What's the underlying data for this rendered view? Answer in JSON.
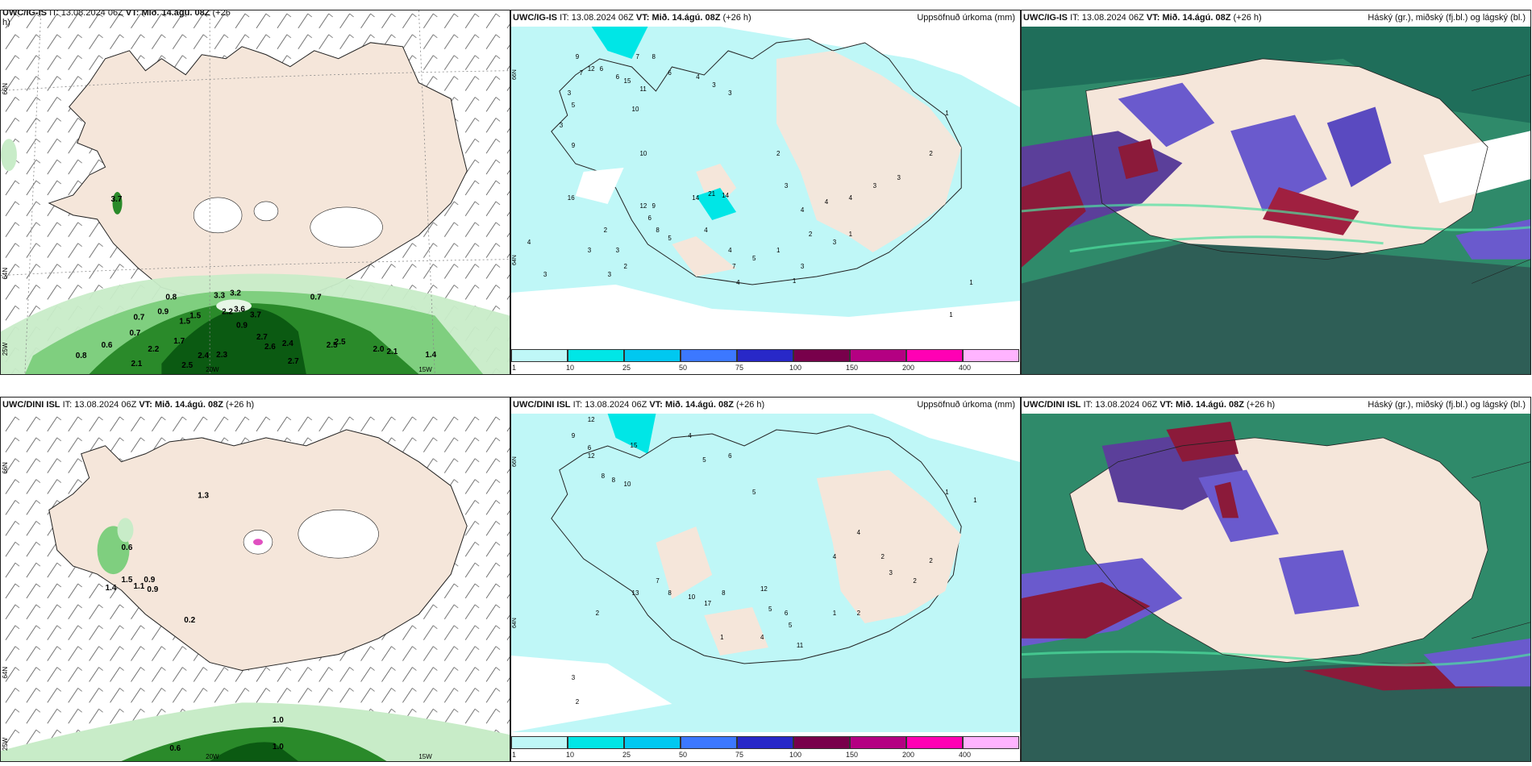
{
  "panels": {
    "p1": {
      "model": "UWC/IG-IS",
      "it": "13.08.2024 06Z",
      "vt": "Mið. 14.ágú. 08Z",
      "lead": "(+26",
      "lead2": "h)"
    },
    "p2": {
      "model": "UWC/IG-IS",
      "it": "13.08.2024 06Z",
      "vt": "Mið. 14.ágú. 08Z",
      "lead": "(+26 h)",
      "right": "Uppsöfnuð úrkoma (mm)"
    },
    "p3": {
      "model": "UWC/IG-IS",
      "it": "13.08.2024 06Z",
      "vt": "Mið. 14.ágú. 08Z",
      "lead": "(+26 h)",
      "right": "Háský (gr.), miðský (fj.bl.) og lágský (bl.)"
    },
    "p4": {
      "model": "UWC/DINI ISL",
      "it": "13.08.2024 06Z",
      "vt": "Mið. 14.ágú. 08Z",
      "lead": "(+26 h)"
    },
    "p5": {
      "model": "UWC/DINI ISL",
      "it": "13.08.2024 06Z",
      "vt": "Mið. 14.ágú. 08Z",
      "lead": "(+26 h)",
      "right": "Uppsöfnuð úrkoma (mm)"
    },
    "p6": {
      "model": "UWC/DINI ISL",
      "it": "13.08.2024 06Z",
      "vt": "Mið. 14.ágú. 08Z",
      "lead": "(+26 h)",
      "right": "Háský (gr.), miðský (fj.bl.) og lágský (bl.)"
    }
  },
  "it_prefix": "IT:",
  "vt_prefix": "VT:",
  "grid_labels": {
    "lat66": "66N",
    "lat64": "64N",
    "lon25": "25W",
    "lon20": "20W",
    "lon15": "15W"
  },
  "colorbar": {
    "ticks": [
      "1",
      "10",
      "25",
      "50",
      "75",
      "100",
      "150",
      "200",
      "400"
    ],
    "colors": [
      "#bff7f7",
      "#00e6e6",
      "#00c8f0",
      "#3c78ff",
      "#2828c8",
      "#78004b",
      "#b40082",
      "#ff00b4",
      "#ffb4ff"
    ]
  },
  "wind_labels_top": [
    "0.8",
    "0.9",
    "0.7",
    "0.7",
    "1.5",
    "1.5",
    "3.3",
    "3.2",
    "2.2",
    "3.6",
    "3.7",
    "0.9",
    "0.7",
    "0.6",
    "1.7",
    "2.2",
    "2.4",
    "2.3",
    "2.7",
    "2.6",
    "2.4",
    "2.5",
    "2.5",
    "2.0",
    "2.1",
    "1.4",
    "0.8",
    "2.1",
    "2.5",
    "2.7",
    "3.7"
  ],
  "wind_labels_bottom": [
    "1.3",
    "0.6",
    "1.5",
    "0.9",
    "1.1",
    "0.9",
    "1.4",
    "0.2",
    "1.0",
    "0.6",
    "1.0"
  ],
  "precip_labels_top": [
    "9",
    "7",
    "3",
    "6",
    "6",
    "5",
    "3",
    "12",
    "15",
    "11",
    "10",
    "7",
    "8",
    "6",
    "4",
    "3",
    "3",
    "9",
    "10",
    "16",
    "12",
    "9",
    "14",
    "21",
    "14",
    "6",
    "8",
    "5",
    "4",
    "4",
    "4",
    "3",
    "2",
    "3",
    "3",
    "3",
    "2",
    "7",
    "4",
    "5",
    "1",
    "1",
    "2",
    "3",
    "3",
    "1",
    "2",
    "3",
    "4",
    "4",
    "4",
    "3",
    "3",
    "2",
    "1",
    "1",
    "1"
  ],
  "precip_labels_bottom": [
    "12",
    "9",
    "6",
    "15",
    "12",
    "8",
    "10",
    "8",
    "4",
    "5",
    "6",
    "5",
    "13",
    "7",
    "8",
    "10",
    "17",
    "8",
    "12",
    "5",
    "6",
    "11",
    "2",
    "3",
    "2",
    "1",
    "4",
    "5",
    "1",
    "2",
    "1",
    "1",
    "2",
    "3",
    "2",
    "2",
    "4",
    "4"
  ],
  "colors": {
    "land": "#f5e6da",
    "sea": "#ffffff",
    "precip_light": "#bff7f7",
    "precip_cyan": "#00e6e6",
    "rain_green": "#3a9a3a",
    "cloud_high": "#3a8c6a",
    "cloud_mid": "#6a5acd",
    "cloud_low": "#8b1a3a"
  }
}
